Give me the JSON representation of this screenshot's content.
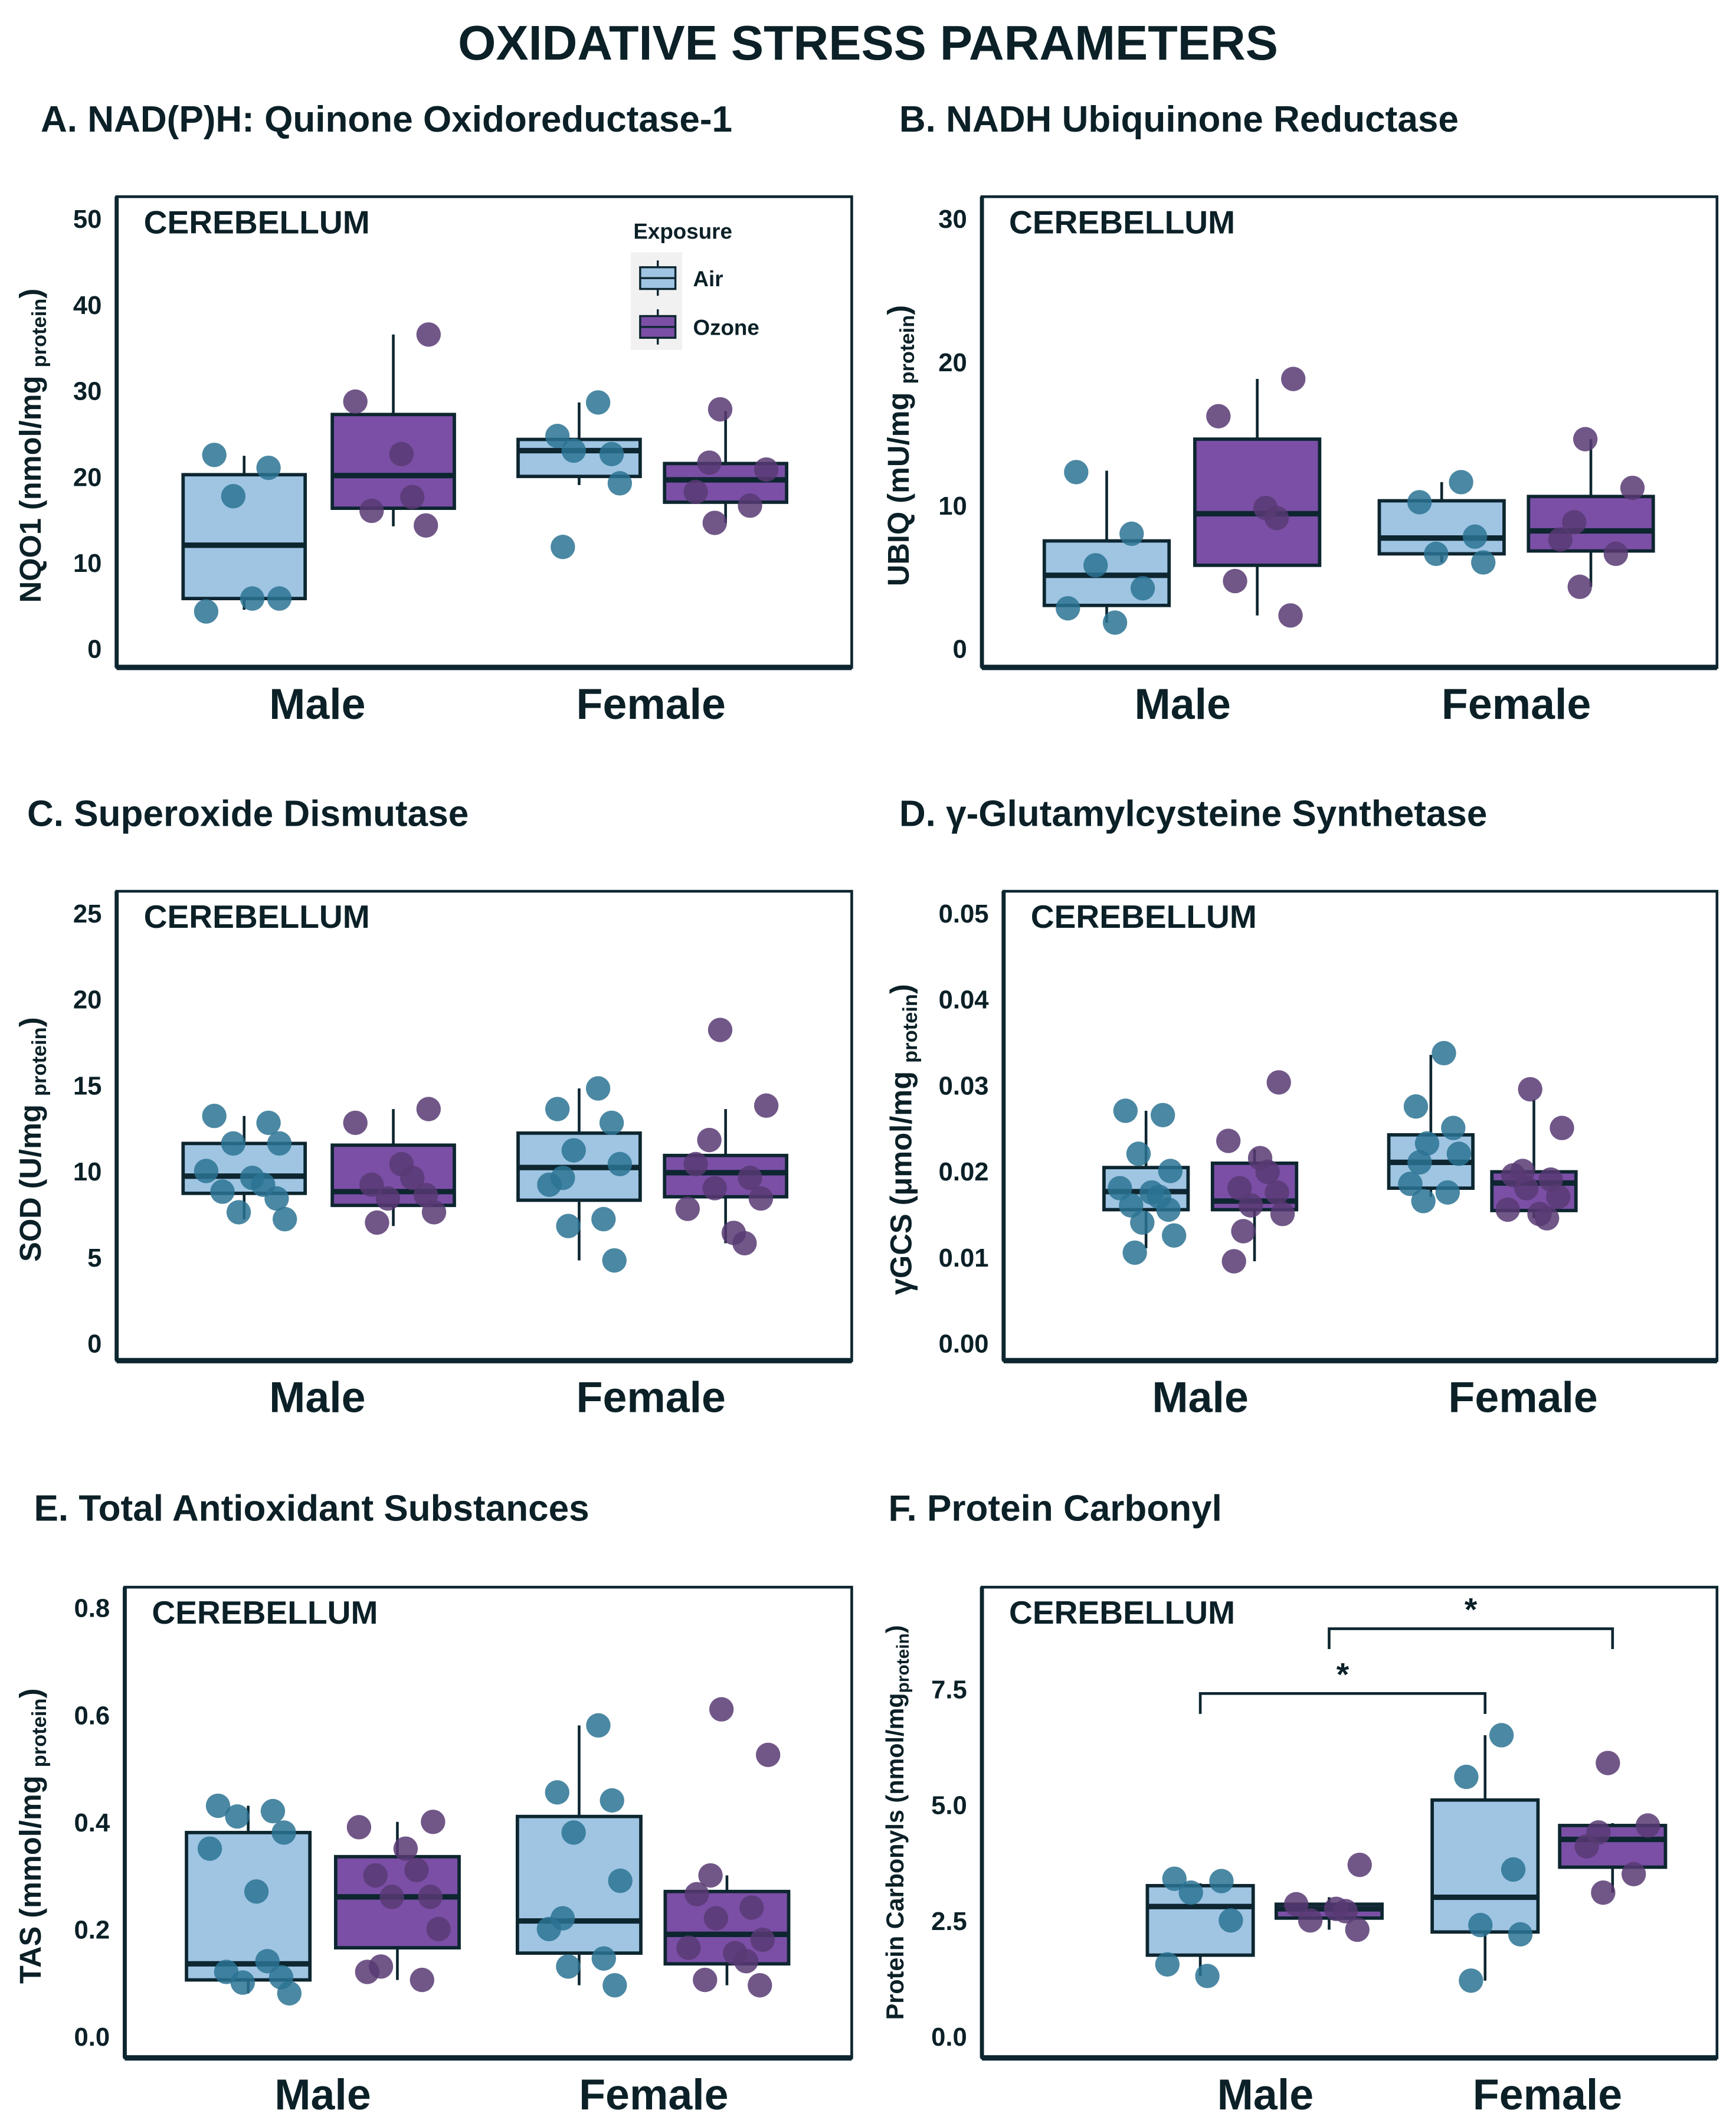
{
  "title": "OXIDATIVE STRESS PARAMETERS",
  "colors": {
    "air_fill": "#9fc5e3",
    "air_point": "#2b7393",
    "ozone_fill": "#7b4fa6",
    "ozone_point": "#583a73",
    "stroke": "#0d2630"
  },
  "legend": {
    "title": "Exposure",
    "items": [
      "Air",
      "Ozone"
    ]
  },
  "chart_data": [
    {
      "id": "A",
      "type": "box",
      "title": "A. NAD(P)H: Quinone Oxidoreductase-1",
      "region": "CEREBELLUM",
      "ylabel": {
        "main": "NQO1 (nmol/mg ",
        "sub": "protein",
        "close": ")"
      },
      "yticks": [
        "0",
        "10",
        "20",
        "30",
        "40",
        "50"
      ],
      "ytick_values": [
        0,
        10,
        20,
        30,
        40,
        50
      ],
      "categories": [
        "Male",
        "Female"
      ],
      "groups": [
        {
          "sex": "Male",
          "exposure": "Air",
          "q1": 5.8,
          "median": 12,
          "q3": 20.2,
          "whisker_low": 4.5,
          "whisker_high": 22.4,
          "points": [
            22.5,
            21,
            17.7,
            5.8,
            4.3,
            5.8
          ]
        },
        {
          "sex": "Male",
          "exposure": "Ozone",
          "q1": 16.3,
          "median": 20.1,
          "q3": 27.2,
          "whisker_low": 14.2,
          "whisker_high": 36.5,
          "points": [
            36.5,
            28.7,
            22.6,
            17.6,
            16,
            14.3
          ]
        },
        {
          "sex": "Female",
          "exposure": "Air",
          "q1": 20,
          "median": 23,
          "q3": 24.3,
          "whisker_low": 19,
          "whisker_high": 28.6,
          "points": [
            28.6,
            24.7,
            22.6,
            23,
            19.2,
            11.8
          ]
        },
        {
          "sex": "Female",
          "exposure": "Ozone",
          "q1": 17,
          "median": 19.6,
          "q3": 21.5,
          "whisker_low": 14.6,
          "whisker_high": 27.6,
          "points": [
            27.8,
            20.8,
            21.6,
            18.2,
            16.6,
            14.6
          ]
        }
      ],
      "significance": []
    },
    {
      "id": "B",
      "type": "box",
      "title": "B. NADH Ubiquinone Reductase",
      "region": "CEREBELLUM",
      "ylabel": {
        "main": "UBIQ (mU/mg ",
        "sub": "protein",
        "close": ")"
      },
      "yticks": [
        "0",
        "10",
        "20",
        "30"
      ],
      "ytick_values": [
        0,
        10,
        20,
        30
      ],
      "categories": [
        "Male",
        "Female"
      ],
      "groups": [
        {
          "sex": "Male",
          "exposure": "Air",
          "q1": 3,
          "median": 5.1,
          "q3": 7.5,
          "whisker_low": 1.8,
          "whisker_high": 12.4,
          "points": [
            12.3,
            8,
            5.8,
            4.2,
            2.8,
            1.8
          ]
        },
        {
          "sex": "Male",
          "exposure": "Ozone",
          "q1": 5.8,
          "median": 9.4,
          "q3": 14.6,
          "whisker_low": 2.3,
          "whisker_high": 18.8,
          "points": [
            18.8,
            16.2,
            9.8,
            9.1,
            4.7,
            2.3
          ]
        },
        {
          "sex": "Female",
          "exposure": "Air",
          "q1": 6.6,
          "median": 7.7,
          "q3": 10.3,
          "whisker_low": 6,
          "whisker_high": 11.6,
          "points": [
            11.6,
            10.2,
            7.8,
            6.6,
            6
          ]
        },
        {
          "sex": "Female",
          "exposure": "Ozone",
          "q1": 6.8,
          "median": 8.2,
          "q3": 10.6,
          "whisker_low": 4.3,
          "whisker_high": 14.6,
          "points": [
            14.6,
            11.2,
            8.8,
            7.6,
            6.6,
            4.3
          ]
        }
      ],
      "significance": []
    },
    {
      "id": "C",
      "type": "box",
      "title": "C. Superoxide Dismutase",
      "region": "CEREBELLUM",
      "ylabel": {
        "main": "SOD (U/mg ",
        "sub": "protein",
        "close": ")"
      },
      "yticks": [
        "0",
        "5",
        "10",
        "15",
        "20",
        "25"
      ],
      "ytick_values": [
        0,
        5,
        10,
        15,
        20,
        25
      ],
      "categories": [
        "Male",
        "Female"
      ],
      "groups": [
        {
          "sex": "Male",
          "exposure": "Air",
          "q1": 8.7,
          "median": 9.7,
          "q3": 11.6,
          "whisker_low": 7.2,
          "whisker_high": 13.2,
          "points": [
            13.2,
            12.8,
            11.6,
            11.6,
            10,
            9.6,
            9.2,
            8.8,
            8.4,
            7.6,
            7.2
          ]
        },
        {
          "sex": "Male",
          "exposure": "Ozone",
          "q1": 8,
          "median": 8.8,
          "q3": 11.5,
          "whisker_low": 6.8,
          "whisker_high": 13.6,
          "points": [
            13.6,
            12.8,
            10.4,
            9.6,
            9.2,
            8.6,
            8.4,
            7.6,
            7.0
          ]
        },
        {
          "sex": "Female",
          "exposure": "Air",
          "q1": 8.3,
          "median": 10.2,
          "q3": 12.2,
          "whisker_low": 4.8,
          "whisker_high": 14.8,
          "points": [
            14.8,
            13.6,
            12.8,
            11.2,
            10.4,
            9.6,
            9.2,
            7.2,
            6.8,
            4.8
          ]
        },
        {
          "sex": "Female",
          "exposure": "Ozone",
          "q1": 8.5,
          "median": 9.9,
          "q3": 10.9,
          "whisker_low": 5.8,
          "whisker_high": 13.6,
          "points": [
            18.2,
            13.8,
            11.8,
            10.4,
            9.6,
            9,
            8.4,
            7.8,
            6.4,
            5.8
          ]
        }
      ],
      "significance": []
    },
    {
      "id": "D",
      "type": "box",
      "title": "D. γ-Glutamylcysteine Synthetase",
      "region": "CEREBELLUM",
      "ylabel": {
        "main": "γGCS (μmol/mg ",
        "sub": "protein",
        "close": ")"
      },
      "yticks": [
        "0.00",
        "0.01",
        "0.02",
        "0.03",
        "0.04",
        "0.05"
      ],
      "ytick_values": [
        0,
        0.01,
        0.02,
        0.03,
        0.04,
        0.05
      ],
      "categories": [
        "Male",
        "Female"
      ],
      "groups": [
        {
          "sex": "Male",
          "exposure": "Air",
          "q1": 0.0155,
          "median": 0.0176,
          "q3": 0.0204,
          "whisker_low": 0.011,
          "whisker_high": 0.027,
          "points": [
            0.027,
            0.0265,
            0.022,
            0.02,
            0.018,
            0.0175,
            0.017,
            0.016,
            0.0155,
            0.014,
            0.0125,
            0.0105
          ]
        },
        {
          "sex": "Male",
          "exposure": "Ozone",
          "q1": 0.0155,
          "median": 0.0165,
          "q3": 0.0209,
          "whisker_low": 0.0095,
          "whisker_high": 0.0225,
          "points": [
            0.0303,
            0.0235,
            0.0215,
            0.0199,
            0.018,
            0.0175,
            0.016,
            0.015,
            0.013,
            0.0095
          ]
        },
        {
          "sex": "Female",
          "exposure": "Air",
          "q1": 0.018,
          "median": 0.021,
          "q3": 0.0242,
          "whisker_low": 0.017,
          "whisker_high": 0.0335,
          "points": [
            0.0337,
            0.0275,
            0.025,
            0.0232,
            0.022,
            0.021,
            0.0185,
            0.0175,
            0.0165
          ]
        },
        {
          "sex": "Female",
          "exposure": "Ozone",
          "q1": 0.0154,
          "median": 0.0186,
          "q3": 0.0199,
          "whisker_low": 0.0145,
          "whisker_high": 0.0283,
          "points": [
            0.0295,
            0.025,
            0.02,
            0.0195,
            0.019,
            0.018,
            0.017,
            0.0155,
            0.015,
            0.0145
          ]
        }
      ],
      "significance": []
    },
    {
      "id": "E",
      "type": "box",
      "title": "E. Total Antioxidant Substances",
      "region": "CEREBELLUM",
      "ylabel": {
        "main": "TAS (mmol/mg ",
        "sub": "protein",
        "close": ")"
      },
      "yticks": [
        "0.0",
        "0.2",
        "0.4",
        "0.6",
        "0.8"
      ],
      "ytick_values": [
        0,
        0.2,
        0.4,
        0.6,
        0.8
      ],
      "categories": [
        "Male",
        "Female"
      ],
      "groups": [
        {
          "sex": "Male",
          "exposure": "Air",
          "q1": 0.105,
          "median": 0.135,
          "q3": 0.38,
          "whisker_low": 0.08,
          "whisker_high": 0.43,
          "points": [
            0.43,
            0.42,
            0.41,
            0.38,
            0.35,
            0.27,
            0.14,
            0.12,
            0.11,
            0.1,
            0.08
          ]
        },
        {
          "sex": "Male",
          "exposure": "Ozone",
          "q1": 0.165,
          "median": 0.26,
          "q3": 0.335,
          "whisker_low": 0.105,
          "whisker_high": 0.4,
          "points": [
            0.4,
            0.39,
            0.35,
            0.31,
            0.3,
            0.26,
            0.26,
            0.2,
            0.13,
            0.12,
            0.105
          ]
        },
        {
          "sex": "Female",
          "exposure": "Air",
          "q1": 0.155,
          "median": 0.215,
          "q3": 0.41,
          "whisker_low": 0.095,
          "whisker_high": 0.58,
          "points": [
            0.58,
            0.455,
            0.44,
            0.38,
            0.29,
            0.22,
            0.2,
            0.145,
            0.13,
            0.095
          ]
        },
        {
          "sex": "Female",
          "exposure": "Ozone",
          "q1": 0.135,
          "median": 0.19,
          "q3": 0.27,
          "whisker_low": 0.095,
          "whisker_high": 0.3,
          "points": [
            0.61,
            0.525,
            0.3,
            0.265,
            0.24,
            0.22,
            0.18,
            0.165,
            0.155,
            0.14,
            0.105,
            0.095
          ]
        }
      ],
      "significance": []
    },
    {
      "id": "F",
      "type": "box",
      "title": "F. Protein Carbonyl",
      "region": "CEREBELLUM",
      "ylabel": {
        "main": "Protein Carbonyls (nmol/mg",
        "sub": "protein",
        "close": ")"
      },
      "yticks": [
        "0.0",
        "2.5",
        "5.0",
        "7.5"
      ],
      "ytick_values": [
        0,
        2.5,
        5,
        7.5
      ],
      "categories": [
        "Male",
        "Female"
      ],
      "groups": [
        {
          "sex": "Male",
          "exposure": "Air",
          "q1": 1.75,
          "median": 2.8,
          "q3": 3.25,
          "whisker_low": 1.3,
          "whisker_high": 3.3,
          "points": [
            3.4,
            3.35,
            3.1,
            2.5,
            1.55,
            1.3
          ]
        },
        {
          "sex": "Male",
          "exposure": "Ozone",
          "q1": 2.55,
          "median": 2.75,
          "q3": 2.85,
          "whisker_low": 2.3,
          "whisker_high": 3.0,
          "points": [
            3.7,
            2.85,
            2.75,
            2.7,
            2.5,
            2.3
          ]
        },
        {
          "sex": "Female",
          "exposure": "Air",
          "q1": 2.25,
          "median": 3.0,
          "q3": 5.1,
          "whisker_low": 1.2,
          "whisker_high": 6.5,
          "points": [
            6.5,
            5.6,
            3.6,
            2.4,
            2.2,
            1.2
          ]
        },
        {
          "sex": "Female",
          "exposure": "Ozone",
          "q1": 3.65,
          "median": 4.25,
          "q3": 4.55,
          "whisker_low": 3.1,
          "whisker_high": 4.6,
          "points": [
            5.9,
            4.55,
            4.4,
            4.1,
            3.5,
            3.1
          ]
        }
      ],
      "significance": [
        {
          "from": 0,
          "to": 2,
          "label": "*",
          "y": 7.4
        },
        {
          "from": 1,
          "to": 3,
          "label": "*",
          "y": 8.8
        }
      ]
    }
  ]
}
